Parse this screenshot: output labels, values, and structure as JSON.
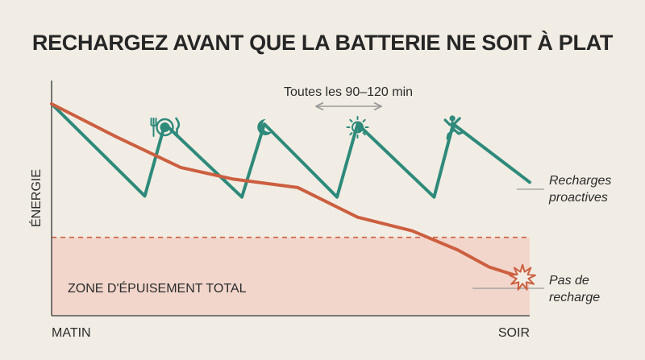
{
  "chart_data": {
    "type": "line",
    "title": "RECHARGEZ AVANT QUE LA BATTERIE NE SOIT À PLAT",
    "ylabel": "ÉNERGIE",
    "x_start_label": "MATIN",
    "x_end_label": "SOIR",
    "ylim": [
      0,
      100
    ],
    "interval_annotation": "Toutes les 90–120 min",
    "zone": {
      "label": "ZONE D'ÉPUISEMENT TOTAL",
      "threshold": 37,
      "color": "#f2d6cc"
    },
    "series": [
      {
        "name_lines": [
          "Recharges",
          "proactives"
        ],
        "color": "#2e8a7b",
        "points": [
          [
            0,
            100
          ],
          [
            19.5,
            56.5
          ],
          [
            23.7,
            90.5
          ],
          [
            39.8,
            56
          ],
          [
            44.5,
            90.5
          ],
          [
            59.7,
            56
          ],
          [
            64,
            90.5
          ],
          [
            80,
            56
          ],
          [
            84,
            90.5
          ],
          [
            100,
            63
          ]
        ]
      },
      {
        "name_lines": [
          "Pas de",
          "recharge"
        ],
        "color": "#cc5f3f",
        "points": [
          [
            0,
            100
          ],
          [
            13.5,
            84.5
          ],
          [
            27,
            70
          ],
          [
            38,
            64.5
          ],
          [
            51.5,
            60.5
          ],
          [
            64,
            46.5
          ],
          [
            75.5,
            40
          ],
          [
            85,
            31
          ],
          [
            91.5,
            23
          ],
          [
            98.5,
            18
          ]
        ]
      }
    ],
    "recharge_icons": [
      {
        "icon": "meal-icon",
        "x": 23.7
      },
      {
        "icon": "moon-icon",
        "x": 44.5
      },
      {
        "icon": "sun-icon",
        "x": 64
      },
      {
        "icon": "activity-icon",
        "x": 84
      }
    ],
    "burnout_marker": {
      "icon": "burst-icon",
      "x": 98.5,
      "y": 18
    }
  }
}
